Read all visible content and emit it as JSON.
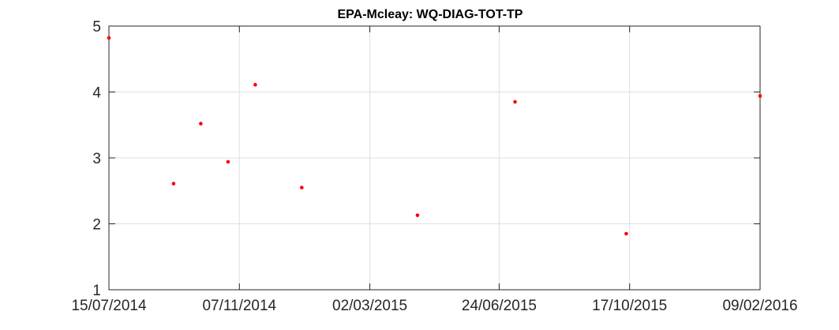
{
  "chart_data": {
    "type": "scatter",
    "title": "EPA-Mcleay: WQ-DIAG-TOT-TP",
    "xlabel": "",
    "ylabel": "",
    "x_axis_type": "date",
    "xlim": [
      "2014-07-15",
      "2016-02-09"
    ],
    "ylim": [
      1,
      5
    ],
    "x_ticks": [
      "2014-07-15",
      "2014-11-07",
      "2015-03-02",
      "2015-06-24",
      "2015-10-17",
      "2016-02-09"
    ],
    "x_tick_labels": [
      "15/07/2014",
      "07/11/2014",
      "02/03/2015",
      "24/06/2015",
      "17/10/2015",
      "09/02/2016"
    ],
    "y_ticks": [
      1,
      2,
      3,
      4,
      5
    ],
    "y_tick_labels": [
      "1",
      "2",
      "3",
      "4",
      "5"
    ],
    "grid": true,
    "marker_color": "#ff0000",
    "points": [
      {
        "x": "2014-07-15",
        "y": 4.82
      },
      {
        "x": "2014-09-10",
        "y": 2.61
      },
      {
        "x": "2014-10-04",
        "y": 3.52
      },
      {
        "x": "2014-10-28",
        "y": 2.94
      },
      {
        "x": "2014-11-21",
        "y": 4.11
      },
      {
        "x": "2015-01-01",
        "y": 2.55
      },
      {
        "x": "2015-03-44",
        "y": 2.13
      },
      {
        "x": "2015-07-08",
        "y": 3.85
      },
      {
        "x": "2015-10-14",
        "y": 1.85
      },
      {
        "x": "2016-02-09",
        "y": 3.94
      }
    ]
  }
}
